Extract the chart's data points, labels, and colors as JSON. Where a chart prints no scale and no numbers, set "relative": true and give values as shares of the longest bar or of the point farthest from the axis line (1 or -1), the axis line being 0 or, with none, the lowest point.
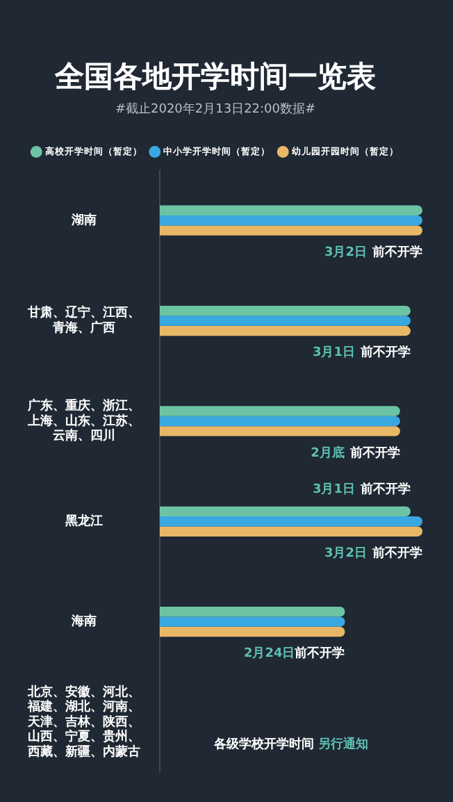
{
  "chart_data": {
    "type": "bar",
    "orientation": "horizontal",
    "relative": true,
    "title": "全国各地开学时间一览表",
    "subtitle": "#截止2020年2月13日22:00数据#",
    "legend": "top",
    "categories": [
      "湖南",
      "甘肃、辽宁、江西、青海、广西",
      "广东、重庆、浙江、上海、山东、江苏、云南、四川",
      "黑龙江",
      "海南",
      "北京、安徽、河北、福建、湖北、河南、天津、吉林、陕西、山西、宁夏、贵州、西藏、新疆、内蒙古"
    ],
    "series": [
      {
        "name": "高校开学时间（暂定）",
        "color": "#6cc4a4",
        "values": [
          1,
          0.955,
          0.915,
          0.955,
          0.705,
          null
        ]
      },
      {
        "name": "中小学开学时间（暂定）",
        "color": "#3aa8e0",
        "values": [
          1,
          0.955,
          0.915,
          1,
          0.705,
          null
        ]
      },
      {
        "name": "幼儿园开园时间（暂定）",
        "color": "#e9b866",
        "values": [
          1,
          0.955,
          0.915,
          1,
          0.705,
          null
        ]
      }
    ],
    "annotations": [
      {
        "text": "3月2日 前不开学",
        "x": 1,
        "y": "湖南"
      },
      {
        "text": "3月1日 前不开学",
        "x": 0.955,
        "y": "甘肃、辽宁、江西、青海、广西"
      },
      {
        "text": "2月底 前不开学",
        "x": 0.915,
        "y": "广东、重庆、浙江、上海、山东、江苏、云南、四川"
      },
      {
        "text": "3月1日 前不开学",
        "x": 0.955,
        "y": "黑龙江"
      },
      {
        "text": "3月2日 前不开学",
        "x": 1,
        "y": "黑龙江"
      },
      {
        "text": "2月24日前不开学",
        "x": 0.705,
        "y": "海南"
      },
      "各级学校开学时间 另行通知"
    ]
  }
}
